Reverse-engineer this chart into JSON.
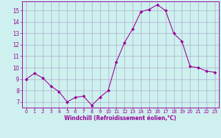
{
  "x": [
    0,
    1,
    2,
    3,
    4,
    5,
    6,
    7,
    8,
    9,
    10,
    11,
    12,
    13,
    14,
    15,
    16,
    17,
    18,
    19,
    20,
    21,
    22,
    23
  ],
  "y": [
    9.0,
    9.5,
    9.1,
    8.4,
    7.9,
    7.0,
    7.4,
    7.5,
    6.7,
    7.4,
    8.0,
    10.5,
    12.2,
    13.4,
    14.9,
    15.1,
    15.5,
    15.0,
    13.0,
    12.3,
    10.1,
    10.0,
    9.7,
    9.6
  ],
  "line_color": "#990099",
  "marker": "D",
  "marker_size": 2,
  "bg_color": "#cef0ee",
  "grid_color": "#aaaacc",
  "xlabel": "Windchill (Refroidissement éolien,°C)",
  "xlabel_color": "#990099",
  "tick_color": "#990099",
  "ylim": [
    6.5,
    15.8
  ],
  "xlim": [
    -0.5,
    23.5
  ],
  "yticks": [
    7,
    8,
    9,
    10,
    11,
    12,
    13,
    14,
    15
  ],
  "xticks": [
    0,
    1,
    2,
    3,
    4,
    5,
    6,
    7,
    8,
    9,
    10,
    11,
    12,
    13,
    14,
    15,
    16,
    17,
    18,
    19,
    20,
    21,
    22,
    23
  ]
}
